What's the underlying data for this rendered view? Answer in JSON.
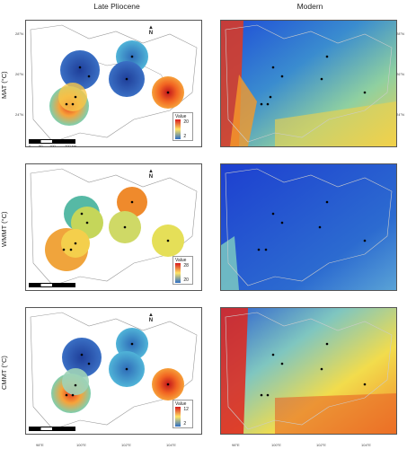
{
  "columns": {
    "left": "Late Pliocene",
    "right": "Modern"
  },
  "rows": [
    {
      "label": "MAT (°C)",
      "legend_title": "Value",
      "legend_max": "20",
      "legend_min": "2"
    },
    {
      "label": "WMMT (°C)",
      "legend_title": "Value",
      "legend_max": "28",
      "legend_min": "20"
    },
    {
      "label": "CMMT (°C)",
      "legend_title": "Value",
      "legend_max": "12",
      "legend_min": "2"
    }
  ],
  "ticks": {
    "lon": [
      "98°E",
      "100°E",
      "102°E",
      "104°E"
    ],
    "lat_left": [
      "28°N",
      "26°N",
      "24°N"
    ],
    "lat_right": [
      "28°N",
      "26°N",
      "24°N"
    ]
  },
  "scale": {
    "labels": [
      "0",
      "50",
      "100",
      "200 km"
    ]
  },
  "north_label": "N",
  "colors": {
    "warm": "#d7191c",
    "mid": "#ffe566",
    "cool": "#2b6cc4",
    "modern_bg": "#2b55c7"
  }
}
